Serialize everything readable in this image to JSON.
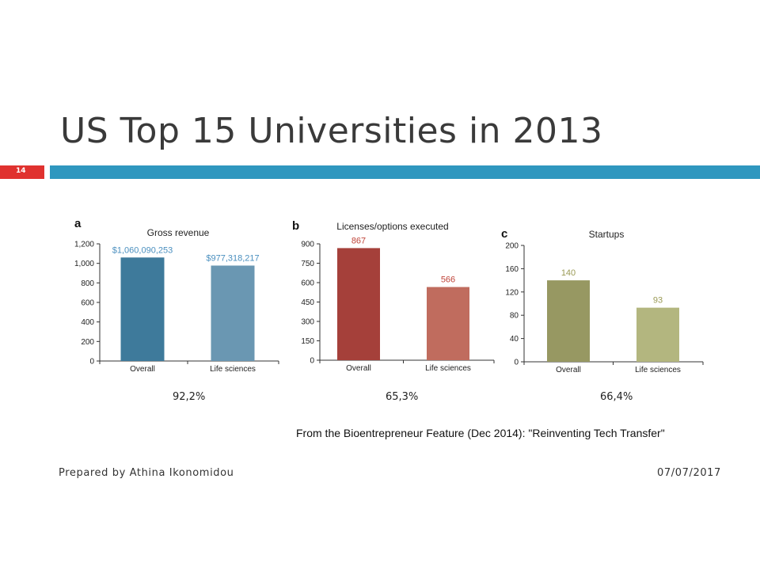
{
  "slide": {
    "title": "US Top 15 Universities in 2013",
    "number": "14",
    "caption": "From the Bioentrepreneur Feature (Dec 2014): \"Reinventing Tech Transfer\"",
    "footer_left": "Prepared by Athina Ikonomidou",
    "footer_right": "07/07/2017",
    "percentages": [
      "92,2%",
      "65,3%",
      "66,4%"
    ]
  },
  "chart_data": [
    {
      "type": "bar",
      "panel": "a",
      "title": "Gross revenue",
      "categories": [
        "Overall",
        "Life sciences"
      ],
      "values": [
        1060.090253,
        977.318217
      ],
      "data_labels": [
        "$1,060,090,253",
        "$977,318,217"
      ],
      "ylim": [
        0,
        1200
      ],
      "yticks": [
        0,
        200,
        400,
        600,
        800,
        1000,
        1200
      ],
      "ytick_labels": [
        "0",
        "200",
        "400",
        "600",
        "800",
        "1,000",
        "1,200"
      ],
      "colors": [
        "#3e7a9b",
        "#6a97b2"
      ],
      "label_color": "#4a8fbf"
    },
    {
      "type": "bar",
      "panel": "b",
      "title": "Licenses/options executed",
      "categories": [
        "Overall",
        "Life sciences"
      ],
      "values": [
        867,
        566
      ],
      "data_labels": [
        "867",
        "566"
      ],
      "ylim": [
        0,
        900
      ],
      "yticks": [
        0,
        150,
        300,
        450,
        600,
        750,
        900
      ],
      "ytick_labels": [
        "0",
        "150",
        "300",
        "450",
        "600",
        "750",
        "900"
      ],
      "colors": [
        "#a5403a",
        "#c06c5e"
      ],
      "label_color": "#c0453a"
    },
    {
      "type": "bar",
      "panel": "c",
      "title": "Startups",
      "categories": [
        "Overall",
        "Life sciences"
      ],
      "values": [
        140,
        93
      ],
      "data_labels": [
        "140",
        "93"
      ],
      "ylim": [
        0,
        200
      ],
      "yticks": [
        0,
        40,
        80,
        120,
        160,
        200
      ],
      "ytick_labels": [
        "0",
        "40",
        "80",
        "120",
        "160",
        "200"
      ],
      "colors": [
        "#979862",
        "#b3b67f"
      ],
      "label_color": "#9a9a55"
    }
  ]
}
